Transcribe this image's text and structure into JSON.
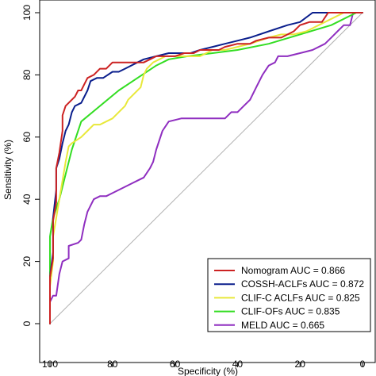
{
  "chart_data": {
    "type": "line",
    "xlabel": "Specificity (%)",
    "ylabel": "Sensitivity (%)",
    "xlim": [
      100,
      0
    ],
    "ylim": [
      0,
      100
    ],
    "x_reversed": true,
    "x_ticks": [
      100,
      80,
      60,
      40,
      20,
      0
    ],
    "y_ticks": [
      0,
      20,
      40,
      60,
      80,
      100
    ],
    "x_tick_labels": [
      "100",
      "80",
      "60",
      "40",
      "20",
      "0"
    ],
    "y_tick_labels": [
      "0",
      "20",
      "40",
      "60",
      "80",
      "100"
    ],
    "grid": false,
    "legend_position": "bottom-right",
    "reference_line": {
      "from": [
        100,
        0
      ],
      "to": [
        0,
        100
      ],
      "color": "#b0b0b0"
    },
    "series": [
      {
        "name": "Nomogram AUC = 0.866",
        "color": "#cc2222",
        "points": [
          [
            100,
            0
          ],
          [
            100,
            15
          ],
          [
            99,
            21
          ],
          [
            99,
            33
          ],
          [
            98,
            39
          ],
          [
            98,
            50
          ],
          [
            97,
            55
          ],
          [
            96,
            62
          ],
          [
            96,
            67
          ],
          [
            95,
            70
          ],
          [
            94,
            71
          ],
          [
            92,
            73
          ],
          [
            91,
            75
          ],
          [
            90,
            75
          ],
          [
            89,
            77
          ],
          [
            88,
            79
          ],
          [
            86,
            80
          ],
          [
            84,
            82
          ],
          [
            82,
            82
          ],
          [
            80,
            84
          ],
          [
            76,
            84
          ],
          [
            72,
            84
          ],
          [
            70,
            84
          ],
          [
            68,
            85
          ],
          [
            66,
            86
          ],
          [
            63,
            86
          ],
          [
            60,
            86
          ],
          [
            57,
            87
          ],
          [
            54,
            87
          ],
          [
            52,
            88
          ],
          [
            48,
            88
          ],
          [
            46,
            88
          ],
          [
            44,
            89
          ],
          [
            40,
            90
          ],
          [
            36,
            90
          ],
          [
            34,
            91
          ],
          [
            30,
            92
          ],
          [
            26,
            92
          ],
          [
            22,
            94
          ],
          [
            20,
            96
          ],
          [
            17,
            97
          ],
          [
            15,
            97
          ],
          [
            13,
            97
          ],
          [
            11,
            100
          ],
          [
            0,
            100
          ]
        ]
      },
      {
        "name": "COSSH-ACLFs AUC = 0.872",
        "color": "#0a1e8c",
        "points": [
          [
            100,
            0
          ],
          [
            100,
            15
          ],
          [
            99,
            23
          ],
          [
            99,
            34
          ],
          [
            98,
            43
          ],
          [
            98,
            50
          ],
          [
            97,
            53
          ],
          [
            96,
            58
          ],
          [
            95,
            62
          ],
          [
            94,
            64
          ],
          [
            93,
            68
          ],
          [
            92,
            70
          ],
          [
            90,
            71
          ],
          [
            88,
            75
          ],
          [
            87,
            78
          ],
          [
            85,
            79
          ],
          [
            83,
            79
          ],
          [
            80,
            81
          ],
          [
            78,
            81
          ],
          [
            76,
            82
          ],
          [
            72,
            84
          ],
          [
            70,
            85
          ],
          [
            66,
            86
          ],
          [
            62,
            87
          ],
          [
            58,
            87
          ],
          [
            55,
            87
          ],
          [
            52,
            88
          ],
          [
            48,
            89
          ],
          [
            44,
            90
          ],
          [
            40,
            91
          ],
          [
            36,
            92
          ],
          [
            30,
            94
          ],
          [
            24,
            96
          ],
          [
            20,
            97
          ],
          [
            16,
            100
          ],
          [
            11,
            100
          ],
          [
            0,
            100
          ]
        ]
      },
      {
        "name": "CLIF-C ACLFs AUC = 0.825",
        "color": "#e8e83a",
        "points": [
          [
            100,
            0
          ],
          [
            100,
            12
          ],
          [
            99,
            20
          ],
          [
            99,
            28
          ],
          [
            98,
            34
          ],
          [
            97,
            40
          ],
          [
            96,
            46
          ],
          [
            95,
            52
          ],
          [
            94,
            57
          ],
          [
            93,
            58
          ],
          [
            90,
            60
          ],
          [
            88,
            62
          ],
          [
            86,
            64
          ],
          [
            84,
            64
          ],
          [
            82,
            65
          ],
          [
            80,
            66
          ],
          [
            78,
            68
          ],
          [
            76,
            70
          ],
          [
            75,
            72
          ],
          [
            73,
            74
          ],
          [
            71,
            76
          ],
          [
            70,
            80
          ],
          [
            69,
            82
          ],
          [
            67,
            84
          ],
          [
            63,
            86
          ],
          [
            60,
            86
          ],
          [
            56,
            86
          ],
          [
            52,
            86
          ],
          [
            48,
            88
          ],
          [
            44,
            88
          ],
          [
            40,
            89
          ],
          [
            36,
            90
          ],
          [
            30,
            92
          ],
          [
            26,
            93
          ],
          [
            22,
            93
          ],
          [
            18,
            94
          ],
          [
            16,
            95
          ],
          [
            14,
            96
          ],
          [
            10,
            98
          ],
          [
            6,
            100
          ],
          [
            0,
            100
          ]
        ]
      },
      {
        "name": "CLIF-OFs AUC = 0.835",
        "color": "#33dd22",
        "points": [
          [
            100,
            0
          ],
          [
            100,
            28
          ],
          [
            99,
            34
          ],
          [
            97,
            40
          ],
          [
            95,
            48
          ],
          [
            93,
            56
          ],
          [
            90,
            65
          ],
          [
            84,
            70
          ],
          [
            78,
            75
          ],
          [
            72,
            79
          ],
          [
            66,
            83
          ],
          [
            62,
            85
          ],
          [
            56,
            86
          ],
          [
            48,
            87
          ],
          [
            40,
            88
          ],
          [
            30,
            90
          ],
          [
            20,
            93
          ],
          [
            10,
            96
          ],
          [
            2,
            100
          ],
          [
            0,
            100
          ]
        ]
      },
      {
        "name": "MELD AUC = 0.665",
        "color": "#8f2ec0",
        "points": [
          [
            100,
            0
          ],
          [
            100,
            7
          ],
          [
            99,
            9
          ],
          [
            98,
            9
          ],
          [
            97,
            16
          ],
          [
            96,
            20
          ],
          [
            94,
            21
          ],
          [
            94,
            25
          ],
          [
            91,
            26
          ],
          [
            90,
            27
          ],
          [
            89,
            32
          ],
          [
            88,
            36
          ],
          [
            86,
            40
          ],
          [
            84,
            41
          ],
          [
            82,
            41
          ],
          [
            80,
            42
          ],
          [
            76,
            44
          ],
          [
            74,
            45
          ],
          [
            72,
            46
          ],
          [
            70,
            47
          ],
          [
            68,
            50
          ],
          [
            67,
            52
          ],
          [
            66,
            56
          ],
          [
            64,
            62
          ],
          [
            62,
            65
          ],
          [
            58,
            66
          ],
          [
            55,
            66
          ],
          [
            51,
            66
          ],
          [
            48,
            66
          ],
          [
            44,
            66
          ],
          [
            42,
            68
          ],
          [
            40,
            68
          ],
          [
            38,
            70
          ],
          [
            36,
            72
          ],
          [
            34,
            76
          ],
          [
            32,
            80
          ],
          [
            30,
            83
          ],
          [
            28,
            84
          ],
          [
            27,
            86
          ],
          [
            24,
            86
          ],
          [
            20,
            87
          ],
          [
            16,
            88
          ],
          [
            12,
            90
          ],
          [
            10,
            92
          ],
          [
            8,
            94
          ],
          [
            6,
            96
          ],
          [
            4,
            96
          ],
          [
            3,
            100
          ],
          [
            0,
            100
          ]
        ]
      }
    ]
  }
}
